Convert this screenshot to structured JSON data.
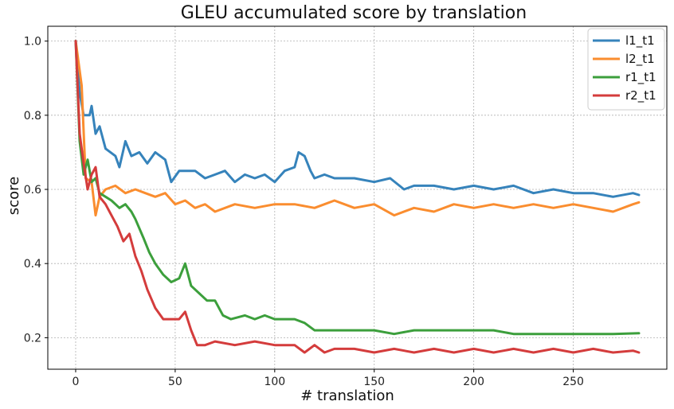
{
  "chart_data": {
    "type": "line",
    "title": "GLEU accumulated score by translation",
    "xlabel": "# translation",
    "ylabel": "score",
    "xlim": [
      -14,
      297
    ],
    "ylim": [
      0.115,
      1.04
    ],
    "xticks": [
      0,
      50,
      100,
      150,
      200,
      250
    ],
    "yticks": [
      0.2,
      0.4,
      0.6,
      0.8,
      1.0
    ],
    "grid": true,
    "legend_position": "top-right",
    "series": [
      {
        "name": "l1_t1",
        "color": "#3683bb",
        "points": [
          [
            0,
            1.0
          ],
          [
            2,
            0.86
          ],
          [
            4,
            0.8
          ],
          [
            7,
            0.8
          ],
          [
            8,
            0.825
          ],
          [
            10,
            0.75
          ],
          [
            12,
            0.77
          ],
          [
            15,
            0.71
          ],
          [
            20,
            0.69
          ],
          [
            22,
            0.66
          ],
          [
            25,
            0.73
          ],
          [
            28,
            0.69
          ],
          [
            32,
            0.7
          ],
          [
            36,
            0.67
          ],
          [
            40,
            0.7
          ],
          [
            45,
            0.68
          ],
          [
            48,
            0.62
          ],
          [
            52,
            0.65
          ],
          [
            60,
            0.65
          ],
          [
            65,
            0.63
          ],
          [
            70,
            0.64
          ],
          [
            75,
            0.65
          ],
          [
            80,
            0.62
          ],
          [
            85,
            0.64
          ],
          [
            90,
            0.63
          ],
          [
            95,
            0.64
          ],
          [
            100,
            0.62
          ],
          [
            105,
            0.65
          ],
          [
            110,
            0.66
          ],
          [
            112,
            0.7
          ],
          [
            115,
            0.69
          ],
          [
            118,
            0.65
          ],
          [
            120,
            0.63
          ],
          [
            125,
            0.64
          ],
          [
            130,
            0.63
          ],
          [
            140,
            0.63
          ],
          [
            150,
            0.62
          ],
          [
            158,
            0.63
          ],
          [
            165,
            0.6
          ],
          [
            170,
            0.61
          ],
          [
            180,
            0.61
          ],
          [
            190,
            0.6
          ],
          [
            200,
            0.61
          ],
          [
            210,
            0.6
          ],
          [
            220,
            0.61
          ],
          [
            230,
            0.59
          ],
          [
            240,
            0.6
          ],
          [
            250,
            0.59
          ],
          [
            260,
            0.59
          ],
          [
            270,
            0.58
          ],
          [
            280,
            0.59
          ],
          [
            283,
            0.585
          ]
        ]
      },
      {
        "name": "l2_t1",
        "color": "#fa8d2f",
        "points": [
          [
            0,
            1.0
          ],
          [
            3,
            0.88
          ],
          [
            5,
            0.63
          ],
          [
            8,
            0.62
          ],
          [
            10,
            0.53
          ],
          [
            12,
            0.58
          ],
          [
            15,
            0.6
          ],
          [
            20,
            0.61
          ],
          [
            25,
            0.59
          ],
          [
            30,
            0.6
          ],
          [
            35,
            0.59
          ],
          [
            40,
            0.58
          ],
          [
            45,
            0.59
          ],
          [
            50,
            0.56
          ],
          [
            55,
            0.57
          ],
          [
            60,
            0.55
          ],
          [
            65,
            0.56
          ],
          [
            70,
            0.54
          ],
          [
            80,
            0.56
          ],
          [
            90,
            0.55
          ],
          [
            100,
            0.56
          ],
          [
            110,
            0.56
          ],
          [
            120,
            0.55
          ],
          [
            130,
            0.57
          ],
          [
            140,
            0.55
          ],
          [
            150,
            0.56
          ],
          [
            160,
            0.53
          ],
          [
            170,
            0.55
          ],
          [
            180,
            0.54
          ],
          [
            190,
            0.56
          ],
          [
            200,
            0.55
          ],
          [
            210,
            0.56
          ],
          [
            220,
            0.55
          ],
          [
            230,
            0.56
          ],
          [
            240,
            0.55
          ],
          [
            250,
            0.56
          ],
          [
            260,
            0.55
          ],
          [
            270,
            0.54
          ],
          [
            280,
            0.56
          ],
          [
            283,
            0.565
          ]
        ]
      },
      {
        "name": "r1_t1",
        "color": "#3c9f3c",
        "points": [
          [
            0,
            1.0
          ],
          [
            2,
            0.73
          ],
          [
            4,
            0.64
          ],
          [
            6,
            0.68
          ],
          [
            8,
            0.62
          ],
          [
            10,
            0.63
          ],
          [
            12,
            0.59
          ],
          [
            15,
            0.58
          ],
          [
            18,
            0.57
          ],
          [
            22,
            0.55
          ],
          [
            25,
            0.56
          ],
          [
            28,
            0.54
          ],
          [
            30,
            0.52
          ],
          [
            34,
            0.47
          ],
          [
            37,
            0.43
          ],
          [
            40,
            0.4
          ],
          [
            44,
            0.37
          ],
          [
            48,
            0.35
          ],
          [
            52,
            0.36
          ],
          [
            55,
            0.4
          ],
          [
            58,
            0.34
          ],
          [
            62,
            0.32
          ],
          [
            66,
            0.3
          ],
          [
            70,
            0.3
          ],
          [
            74,
            0.26
          ],
          [
            78,
            0.25
          ],
          [
            85,
            0.26
          ],
          [
            90,
            0.25
          ],
          [
            95,
            0.26
          ],
          [
            100,
            0.25
          ],
          [
            110,
            0.25
          ],
          [
            115,
            0.24
          ],
          [
            120,
            0.22
          ],
          [
            130,
            0.22
          ],
          [
            140,
            0.22
          ],
          [
            150,
            0.22
          ],
          [
            160,
            0.21
          ],
          [
            170,
            0.22
          ],
          [
            180,
            0.22
          ],
          [
            190,
            0.22
          ],
          [
            200,
            0.22
          ],
          [
            210,
            0.22
          ],
          [
            220,
            0.21
          ],
          [
            230,
            0.21
          ],
          [
            240,
            0.21
          ],
          [
            250,
            0.21
          ],
          [
            260,
            0.21
          ],
          [
            270,
            0.21
          ],
          [
            283,
            0.212
          ]
        ]
      },
      {
        "name": "r2_t1",
        "color": "#d43c3c",
        "points": [
          [
            0,
            1.0
          ],
          [
            2,
            0.75
          ],
          [
            4,
            0.67
          ],
          [
            6,
            0.6
          ],
          [
            8,
            0.64
          ],
          [
            10,
            0.66
          ],
          [
            12,
            0.58
          ],
          [
            15,
            0.56
          ],
          [
            18,
            0.53
          ],
          [
            21,
            0.5
          ],
          [
            24,
            0.46
          ],
          [
            27,
            0.48
          ],
          [
            30,
            0.42
          ],
          [
            33,
            0.38
          ],
          [
            36,
            0.33
          ],
          [
            40,
            0.28
          ],
          [
            44,
            0.25
          ],
          [
            48,
            0.25
          ],
          [
            52,
            0.25
          ],
          [
            55,
            0.27
          ],
          [
            58,
            0.22
          ],
          [
            61,
            0.18
          ],
          [
            65,
            0.18
          ],
          [
            70,
            0.19
          ],
          [
            80,
            0.18
          ],
          [
            90,
            0.19
          ],
          [
            100,
            0.18
          ],
          [
            110,
            0.18
          ],
          [
            115,
            0.16
          ],
          [
            120,
            0.18
          ],
          [
            125,
            0.16
          ],
          [
            130,
            0.17
          ],
          [
            140,
            0.17
          ],
          [
            150,
            0.16
          ],
          [
            160,
            0.17
          ],
          [
            170,
            0.16
          ],
          [
            180,
            0.17
          ],
          [
            190,
            0.16
          ],
          [
            200,
            0.17
          ],
          [
            210,
            0.16
          ],
          [
            220,
            0.17
          ],
          [
            230,
            0.16
          ],
          [
            240,
            0.17
          ],
          [
            250,
            0.16
          ],
          [
            260,
            0.17
          ],
          [
            270,
            0.16
          ],
          [
            280,
            0.165
          ],
          [
            283,
            0.16
          ]
        ]
      }
    ]
  }
}
